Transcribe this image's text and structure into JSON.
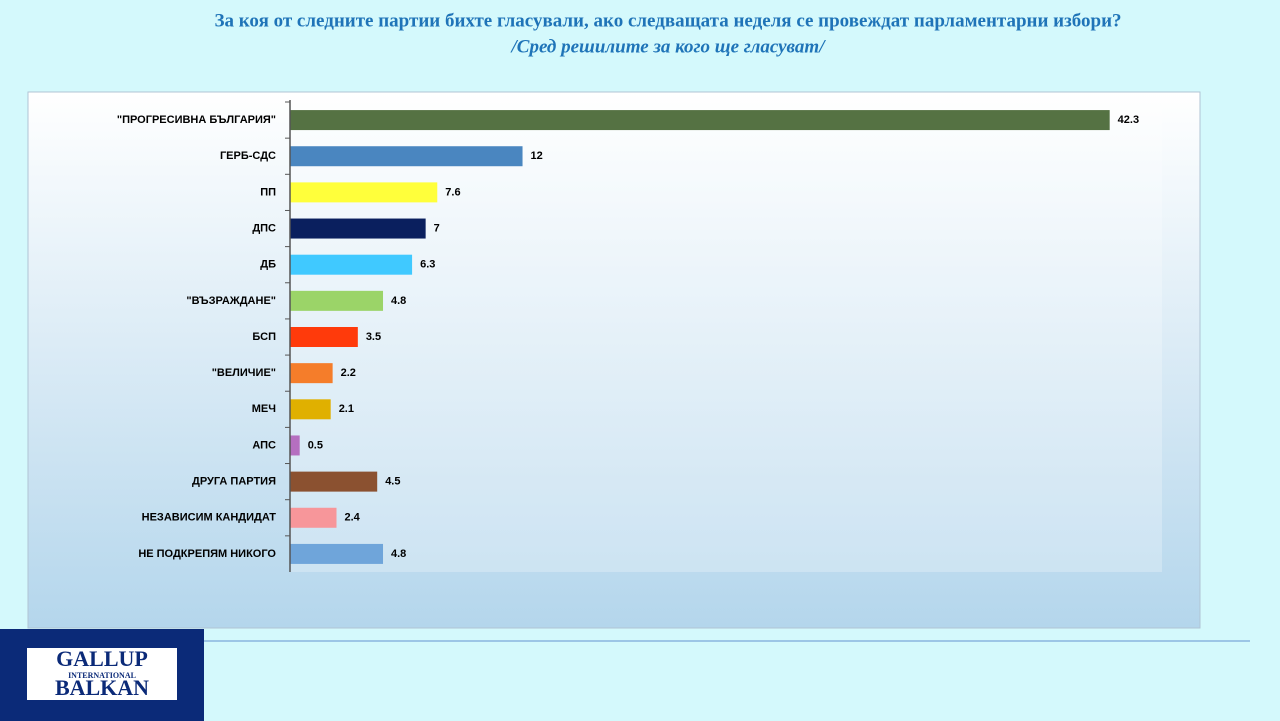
{
  "chart_data": {
    "type": "hbar",
    "title": "За коя от следните партии бихте  гласували,  ако следващата неделя се провеждат парламентарни избори?",
    "subtitle": "/Сред решилите за кого ще гласуват/",
    "categories": [
      "\"ПРОГРЕСИВНА БЪЛГАРИЯ\"",
      "ГЕРБ-СДС",
      "ПП",
      "ДПС",
      "ДБ",
      "\"ВЪЗРАЖДАНЕ\"",
      "БСП",
      "\"ВЕЛИЧИЕ\"",
      "МЕЧ",
      "АПС",
      "ДРУГА ПАРТИЯ",
      "НЕЗАВИСИМ КАНДИДАТ",
      "НЕ ПОДКРЕПЯМ НИКОГО"
    ],
    "values": [
      42.3,
      12,
      7.6,
      7,
      6.3,
      4.8,
      3.5,
      2.2,
      2.1,
      0.5,
      4.5,
      2.4,
      4.8
    ],
    "colors": [
      "#557243",
      "#4a86c0",
      "#ffff3b",
      "#0a1f5e",
      "#40c9ff",
      "#9bd468",
      "#ff3a0b",
      "#f57d2a",
      "#e0b000",
      "#b56fc0",
      "#8b5130",
      "#f7969a",
      "#6fa5da"
    ],
    "xlim": [
      0,
      45
    ]
  },
  "logo": {
    "line1": "GALLUP",
    "line2": "INTERNATIONAL",
    "line3": "BALKAN"
  }
}
